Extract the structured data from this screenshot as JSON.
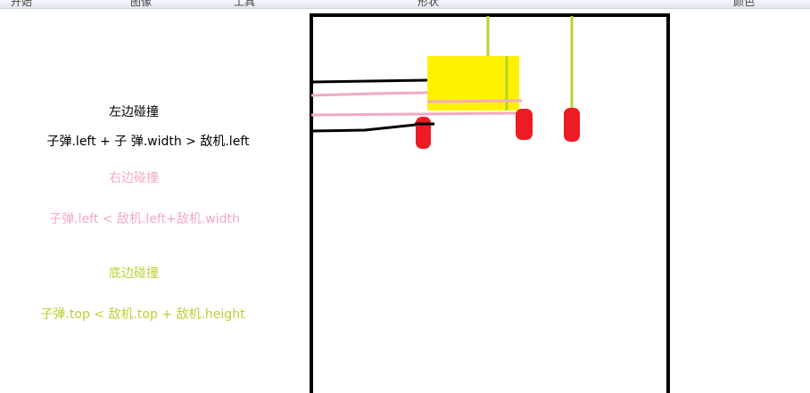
{
  "menu": {
    "items": [
      "开始",
      "图像",
      "工具",
      "形状",
      "颜色"
    ]
  },
  "annotations": {
    "left_title": "左边碰撞",
    "left_formula": "子弹.left + 子 弹.width > 敌机.left",
    "right_title": "右边碰撞",
    "right_formula": "子弹.left < 敌机.left+敌机.width",
    "bottom_title": "底边碰撞",
    "bottom_formula": "子弹.top < 敌机.top + 敌机.height"
  },
  "colors": {
    "left": "#000000",
    "right": "#f4a9c4",
    "bottom": "#b5d334",
    "enemy": "#fff200",
    "bullet": "#ec1c24",
    "frame": "#000000"
  }
}
